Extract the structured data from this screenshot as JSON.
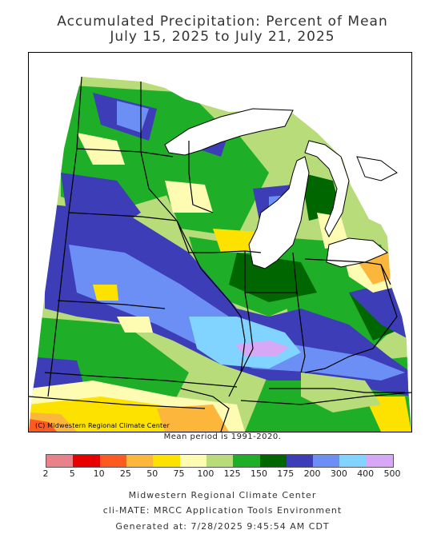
{
  "title_line1": "Accumulated Precipitation: Percent of Mean",
  "title_line2": "July 15, 2025 to July 21, 2025",
  "copyright": "(C) Midwestern Regional Climate Center",
  "mean_period": "Mean period is 1991-2020.",
  "legend": {
    "labels": [
      "2",
      "5",
      "10",
      "25",
      "50",
      "75",
      "100",
      "125",
      "150",
      "175",
      "200",
      "300",
      "400",
      "500"
    ],
    "colors": [
      "#e8818a",
      "#e60000",
      "#ff5a1f",
      "#fdb63c",
      "#fde200",
      "#fefbb3",
      "#b7dc79",
      "#1fae28",
      "#006600",
      "#3d3db8",
      "#6b8ff5",
      "#80d4ff",
      "#d7a8f5"
    ]
  },
  "footer": {
    "line1": "Midwestern Regional Climate Center",
    "line2": "cli-MATE: MRCC Application Tools Environment",
    "line3": "Generated at: 7/28/2025 9:45:54 AM CDT"
  }
}
